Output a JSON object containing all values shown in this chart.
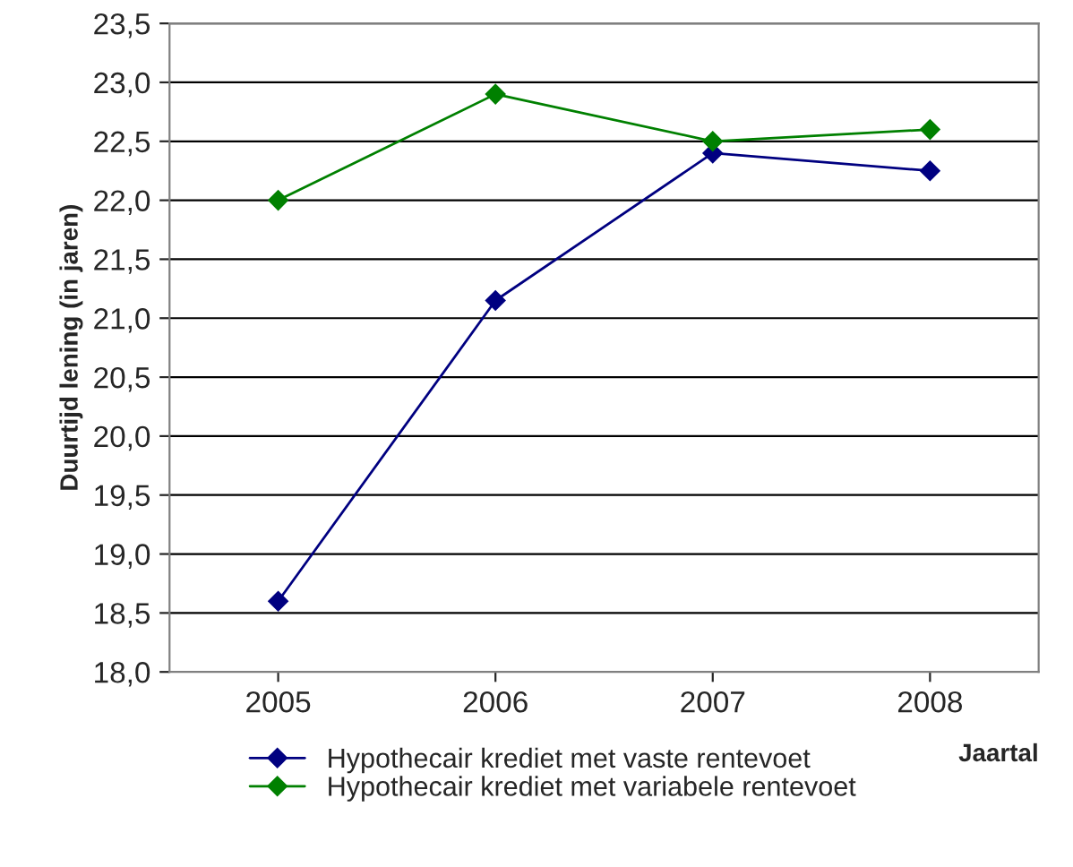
{
  "chart_data": {
    "type": "line",
    "xlabel": "Jaartal",
    "ylabel": "Duurtijd lening (in jaren)",
    "categories": [
      "2005",
      "2006",
      "2007",
      "2008"
    ],
    "series": [
      {
        "name": "Hypothecair krediet met vaste rentevoet",
        "color": "#000080",
        "values": [
          18.6,
          21.15,
          22.4,
          22.25
        ]
      },
      {
        "name": "Hypothecair krediet met variabele rentevoet",
        "color": "#008000",
        "values": [
          22.0,
          22.9,
          22.5,
          22.6
        ]
      }
    ],
    "ylim": [
      18.0,
      23.5
    ],
    "yticks": [
      {
        "value": 18.0,
        "label": "18,0"
      },
      {
        "value": 18.5,
        "label": "18,5"
      },
      {
        "value": 19.0,
        "label": "19,0"
      },
      {
        "value": 19.5,
        "label": "19,5"
      },
      {
        "value": 20.0,
        "label": "20,0"
      },
      {
        "value": 20.5,
        "label": "20,5"
      },
      {
        "value": 21.0,
        "label": "21,0"
      },
      {
        "value": 21.5,
        "label": "21,5"
      },
      {
        "value": 22.0,
        "label": "22,0"
      },
      {
        "value": 22.5,
        "label": "22,5"
      },
      {
        "value": 23.0,
        "label": "23,0"
      },
      {
        "value": 23.5,
        "label": "23,5"
      }
    ],
    "grid": "y",
    "legend": "bottom",
    "marker": "diamond",
    "line_style": "solid"
  }
}
